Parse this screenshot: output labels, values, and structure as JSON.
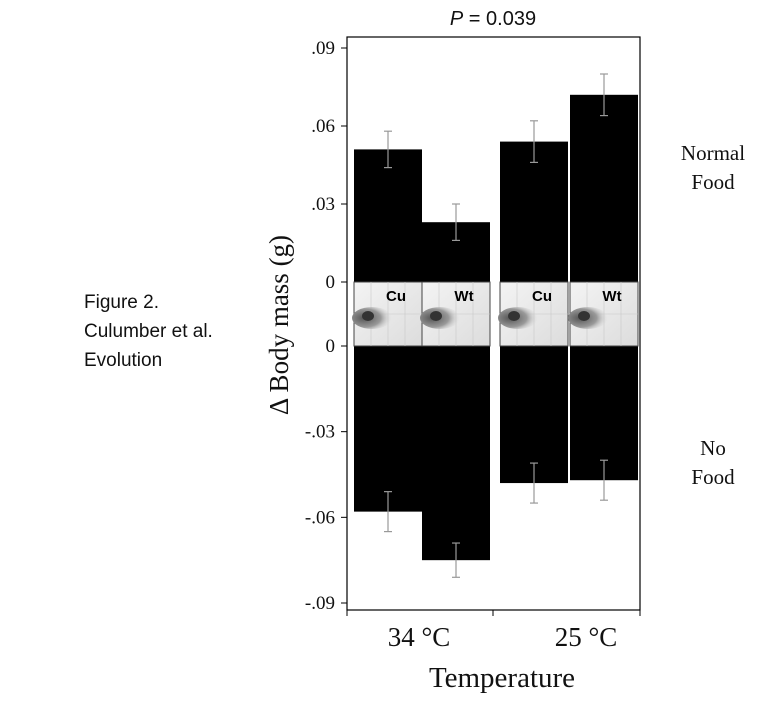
{
  "caption": {
    "line1": "Figure 2.",
    "line2": "Culumber et al.",
    "line3": "Evolution"
  },
  "chart_data": {
    "type": "bar",
    "title": "P = 0.039",
    "title_italic_part": "P",
    "title_rest": " = 0.039",
    "ylabel": "Δ Body mass (g)",
    "xlabel": "Temperature",
    "categories": [
      "34 °C",
      "25 °C"
    ],
    "group_labels": [
      "Cu",
      "Wt",
      "Cu",
      "Wt"
    ],
    "panels": [
      {
        "name": "Normal Food",
        "label_lines": [
          "Normal",
          "Food"
        ],
        "ylim": [
          0,
          0.09
        ],
        "ticks": [
          ".09",
          ".06",
          ".03",
          "0"
        ],
        "tick_values": [
          0.09,
          0.06,
          0.03,
          0
        ],
        "values": [
          0.051,
          0.023,
          0.054,
          0.072
        ],
        "errors": [
          0.007,
          0.007,
          0.008,
          0.008
        ]
      },
      {
        "name": "No Food",
        "label_lines": [
          "No",
          "Food"
        ],
        "ylim": [
          -0.09,
          0
        ],
        "ticks": [
          "0",
          "-.03",
          "-.06",
          "-.09"
        ],
        "tick_values": [
          0,
          -0.03,
          -0.06,
          -0.09
        ],
        "values": [
          -0.058,
          -0.075,
          -0.048,
          -0.047
        ],
        "errors": [
          0.007,
          0.006,
          0.007,
          0.007
        ]
      }
    ],
    "bar_color": "#000000",
    "error_bar_color": "#999999",
    "grid": false
  }
}
